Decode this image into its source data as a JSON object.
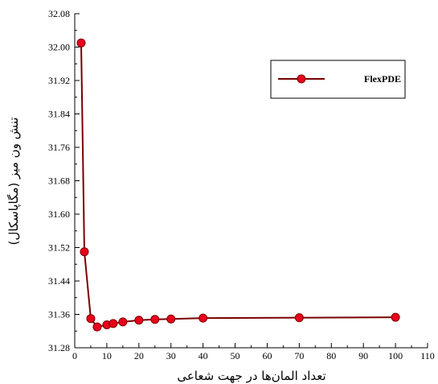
{
  "chart_data": {
    "type": "line",
    "xlabel": "تعداد المان‌ها در جهت شعاعی",
    "ylabel": "تنش ون میز (مگاپاسکال)",
    "xlim": [
      0,
      110
    ],
    "ylim": [
      31.28,
      32.08
    ],
    "x_ticks": [
      "0",
      "10",
      "20",
      "30",
      "40",
      "50",
      "60",
      "70",
      "80",
      "90",
      "100",
      "110"
    ],
    "y_ticks": [
      "31.28",
      "31.36",
      "31.44",
      "31.52",
      "31.60",
      "31.68",
      "31.76",
      "31.84",
      "31.92",
      "32.00",
      "32.08"
    ],
    "series": [
      {
        "name": "FlexPDE",
        "line_color": "#7a0000",
        "marker_color": "#e8001c",
        "x": [
          2,
          3,
          5,
          7,
          10,
          12,
          15,
          20,
          25,
          30,
          40,
          70,
          100
        ],
        "y": [
          32.01,
          31.51,
          31.35,
          31.33,
          31.335,
          31.338,
          31.342,
          31.346,
          31.348,
          31.349,
          31.351,
          31.352,
          31.353
        ]
      }
    ],
    "legend_position": "top-right",
    "grid": false
  }
}
